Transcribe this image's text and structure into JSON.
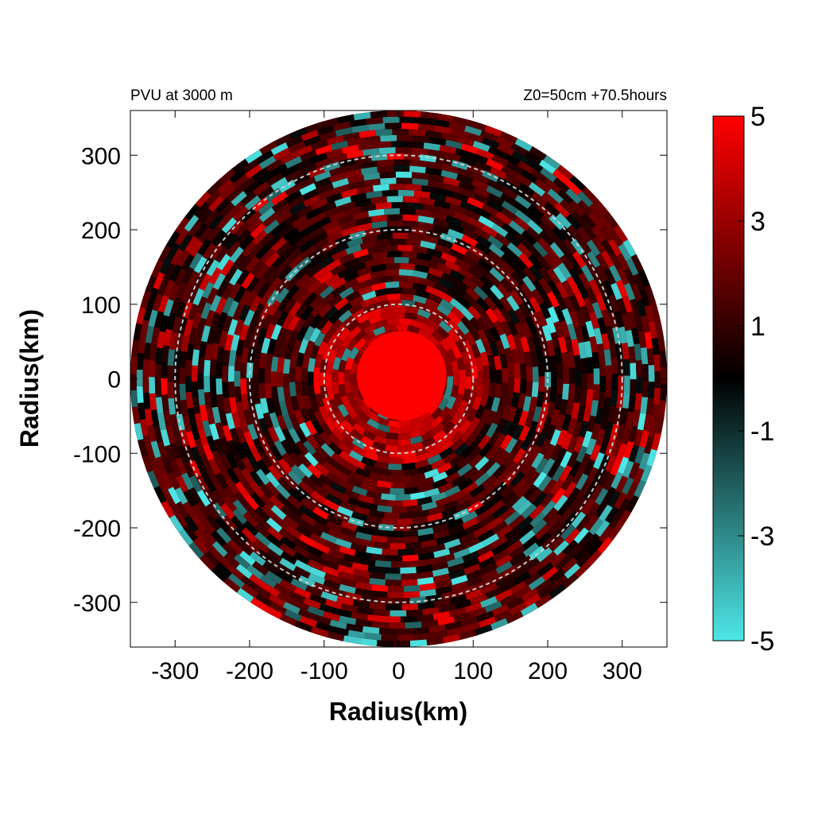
{
  "header": {
    "left": "PVU at  3000 m",
    "right": "Z0=50cm  +70.5hours"
  },
  "colors": {
    "max": "#ff0000",
    "mid": "#000000",
    "min": "#4ee6e6",
    "ring": "#cccccc",
    "frame": "#000000"
  },
  "chart_data": {
    "type": "heatmap",
    "title": "PVU at  3000 m",
    "subtitle": "Z0=50cm  +70.5hours",
    "xlabel": "Radius(km)",
    "ylabel": "Radius(km)",
    "xlim": [
      -360,
      360
    ],
    "ylim": [
      -360,
      360
    ],
    "x_ticks": [
      -300,
      -200,
      -100,
      0,
      100,
      200,
      300
    ],
    "y_ticks": [
      300,
      200,
      100,
      0,
      -100,
      -200,
      -300
    ],
    "domain_radius_km": 360,
    "reference_rings_km": [
      100,
      200,
      300
    ],
    "core": {
      "radius_km": 60,
      "value": 5
    },
    "colorbar": {
      "min": -5,
      "max": 5,
      "tick_labels": [
        "5",
        "3",
        "1",
        "-1",
        "-3",
        "-5"
      ],
      "tick_values": [
        5,
        3,
        1,
        -1,
        -3,
        -5
      ]
    },
    "field_description_seed": 7
  }
}
